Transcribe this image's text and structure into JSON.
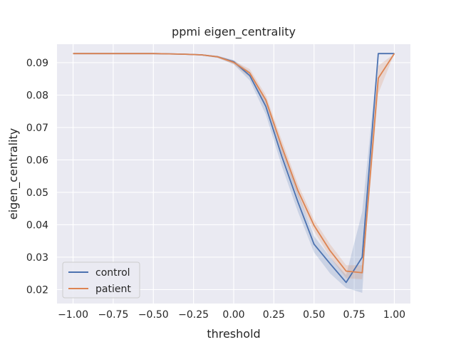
{
  "chart_data": {
    "type": "line",
    "title": "ppmi eigen_centrality",
    "xlabel": "threshold",
    "ylabel": "eigen_centrality",
    "xlim": [
      -1.1,
      1.1
    ],
    "ylim": [
      0.0157,
      0.0957
    ],
    "xticks": [
      -1.0,
      -0.75,
      -0.5,
      -0.25,
      0.0,
      0.25,
      0.5,
      0.75,
      1.0
    ],
    "xtick_labels": [
      "−1.00",
      "−0.75",
      "−0.50",
      "−0.25",
      "0.00",
      "0.25",
      "0.50",
      "0.75",
      "1.00"
    ],
    "yticks": [
      0.02,
      0.03,
      0.04,
      0.05,
      0.06,
      0.07,
      0.08,
      0.09
    ],
    "ytick_labels": [
      "0.02",
      "0.03",
      "0.04",
      "0.05",
      "0.06",
      "0.07",
      "0.08",
      "0.09"
    ],
    "grid": true,
    "legend_position": "lower-left",
    "background": "#eaeaf2",
    "x": [
      -1.0,
      -0.9,
      -0.8,
      -0.7,
      -0.6,
      -0.5,
      -0.4,
      -0.3,
      -0.2,
      -0.1,
      0.0,
      0.1,
      0.2,
      0.3,
      0.4,
      0.5,
      0.6,
      0.7,
      0.8,
      0.9,
      1.0
    ],
    "series": [
      {
        "name": "control",
        "color": "#4c72b0",
        "values": [
          0.0928,
          0.0928,
          0.0928,
          0.0928,
          0.0928,
          0.0928,
          0.0927,
          0.0926,
          0.0924,
          0.0918,
          0.0903,
          0.086,
          0.0765,
          0.061,
          0.047,
          0.034,
          0.028,
          0.0222,
          0.03,
          0.0928,
          0.0928
        ],
        "ci_low": [
          0.0928,
          0.0928,
          0.0928,
          0.0928,
          0.0928,
          0.0928,
          0.0927,
          0.0925,
          0.0922,
          0.0915,
          0.0895,
          0.0845,
          0.074,
          0.058,
          0.044,
          0.0315,
          0.025,
          0.0205,
          0.019,
          0.0928,
          0.0928
        ],
        "ci_high": [
          0.0928,
          0.0928,
          0.0928,
          0.0928,
          0.0928,
          0.0928,
          0.0928,
          0.0927,
          0.0926,
          0.0921,
          0.0908,
          0.0872,
          0.0785,
          0.064,
          0.05,
          0.0365,
          0.03,
          0.0245,
          0.044,
          0.0928,
          0.0928
        ]
      },
      {
        "name": "patient",
        "color": "#dd8452",
        "values": [
          0.0928,
          0.0928,
          0.0928,
          0.0928,
          0.0928,
          0.0928,
          0.0927,
          0.0926,
          0.0924,
          0.0918,
          0.0901,
          0.0868,
          0.0785,
          0.064,
          0.0505,
          0.0398,
          0.032,
          0.0257,
          0.0252,
          0.0852,
          0.0928
        ],
        "ci_low": [
          0.0928,
          0.0928,
          0.0928,
          0.0928,
          0.0928,
          0.0928,
          0.0926,
          0.0925,
          0.0922,
          0.0915,
          0.0895,
          0.0855,
          0.077,
          0.062,
          0.0485,
          0.038,
          0.03,
          0.0235,
          0.0232,
          0.0805,
          0.0928
        ],
        "ci_high": [
          0.0928,
          0.0928,
          0.0928,
          0.0928,
          0.0928,
          0.0928,
          0.0928,
          0.0927,
          0.0926,
          0.0921,
          0.0906,
          0.088,
          0.08,
          0.066,
          0.0525,
          0.0415,
          0.034,
          0.0275,
          0.0275,
          0.089,
          0.0928
        ]
      }
    ]
  }
}
